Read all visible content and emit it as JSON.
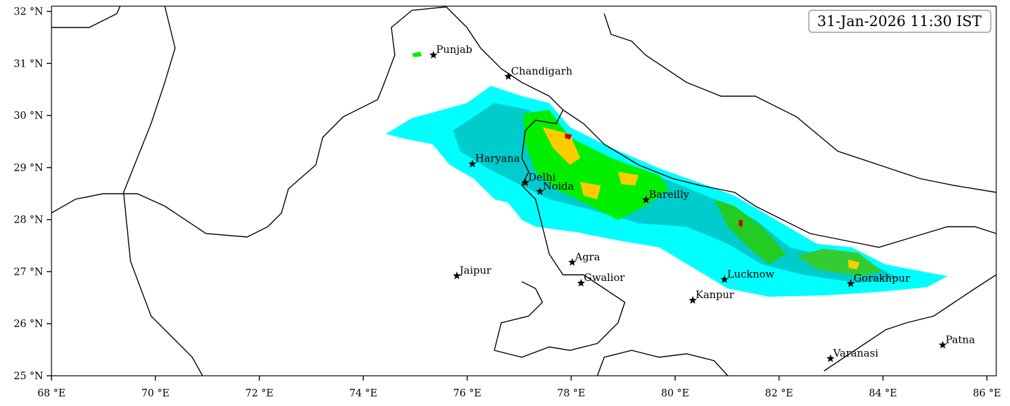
{
  "map": {
    "timestamp": "31-Jan-2026 11:30 IST",
    "xlim": [
      68,
      86.18
    ],
    "ylim": [
      25,
      32.1
    ],
    "xticks": [
      {
        "value": 68,
        "label": "68 °E"
      },
      {
        "value": 70,
        "label": "70 °E"
      },
      {
        "value": 72,
        "label": "72 °E"
      },
      {
        "value": 74,
        "label": "74 °E"
      },
      {
        "value": 76,
        "label": "76 °E"
      },
      {
        "value": 78,
        "label": "78 °E"
      },
      {
        "value": 80,
        "label": "80 °E"
      },
      {
        "value": 82,
        "label": "82 °E"
      },
      {
        "value": 84,
        "label": "84 °E"
      },
      {
        "value": 86,
        "label": "86 °E"
      }
    ],
    "yticks": [
      {
        "value": 25,
        "label": "25 °N"
      },
      {
        "value": 26,
        "label": "26 °N"
      },
      {
        "value": 27,
        "label": "27 °N"
      },
      {
        "value": 28,
        "label": "28 °N"
      },
      {
        "value": 29,
        "label": "29 °N"
      },
      {
        "value": 30,
        "label": "30 °N"
      },
      {
        "value": 31,
        "label": "31 °N"
      },
      {
        "value": 32,
        "label": "32 °N"
      }
    ],
    "cities": [
      {
        "name": "Punjab",
        "lon": 75.35,
        "lat": 31.16
      },
      {
        "name": "Chandigarh",
        "lon": 76.79,
        "lat": 30.75
      },
      {
        "name": "Haryana",
        "lon": 76.1,
        "lat": 29.07
      },
      {
        "name": "Delhi",
        "lon": 77.12,
        "lat": 28.71
      },
      {
        "name": "Noida",
        "lon": 77.4,
        "lat": 28.54
      },
      {
        "name": "Bareilly",
        "lon": 79.44,
        "lat": 28.38
      },
      {
        "name": "Agra",
        "lon": 78.02,
        "lat": 27.18
      },
      {
        "name": "Jaipur",
        "lon": 75.8,
        "lat": 26.92
      },
      {
        "name": "Gwalior",
        "lon": 78.19,
        "lat": 26.78
      },
      {
        "name": "Lucknow",
        "lon": 80.95,
        "lat": 26.85
      },
      {
        "name": "Gorakhpur",
        "lon": 83.38,
        "lat": 26.77
      },
      {
        "name": "Kanpur",
        "lon": 80.34,
        "lat": 26.45
      },
      {
        "name": "Varanasi",
        "lon": 82.99,
        "lat": 25.33
      },
      {
        "name": "Patna",
        "lon": 85.15,
        "lat": 25.59
      }
    ]
  }
}
